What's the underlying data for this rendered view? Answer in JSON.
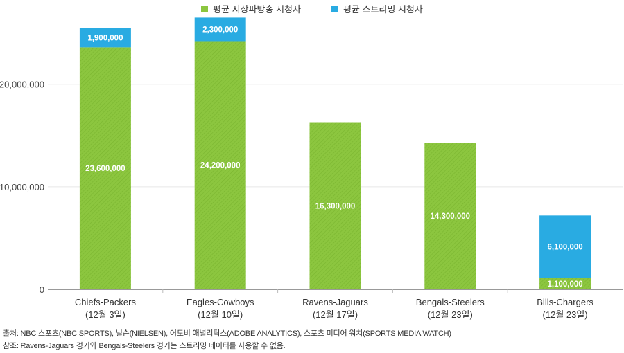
{
  "chart_data": {
    "type": "bar",
    "stacked": true,
    "categories": [
      [
        "Chiefs-Packers",
        "(12월 3일)"
      ],
      [
        "Eagles-Cowboys",
        "(12월 10일)"
      ],
      [
        "Ravens-Jaguars",
        "(12월 17일)"
      ],
      [
        "Bengals-Steelers",
        "(12월 23일)"
      ],
      [
        "Bills-Chargers",
        "(12월 23일)"
      ]
    ],
    "series": [
      {
        "name": "평균 지상파방송 시청자",
        "color": "#8cc63f",
        "values": [
          23600000,
          24200000,
          16300000,
          14300000,
          1100000
        ],
        "labels": [
          "23,600,000",
          "24,200,000",
          "16,300,000",
          "14,300,000",
          "1,100,000"
        ]
      },
      {
        "name": "평균 스트리밍 시청자",
        "color": "#29abe2",
        "values": [
          1900000,
          2300000,
          0,
          0,
          6100000
        ],
        "labels": [
          "1,900,000",
          "2,300,000",
          "",
          "",
          "6,100,000"
        ]
      }
    ],
    "yticks": [
      0,
      10000000,
      20000000
    ],
    "ytick_labels": [
      "0",
      "10,000,000",
      "20,000,000"
    ],
    "ylim": [
      0,
      27000000
    ],
    "grid": true,
    "legend_position": "top-center"
  },
  "notes": {
    "source": "출처: NBC 스포츠(NBC SPORTS), 닐슨(NIELSEN), 어도비 애널리틱스(ADOBE ANALYTICS), 스포츠 미디어 워치(SPORTS MEDIA WATCH)",
    "reference": "참조: Ravens-Jaguars 경기와 Bengals-Steelers 경기는 스트리밍 데이터를 사용할 수 없음."
  }
}
